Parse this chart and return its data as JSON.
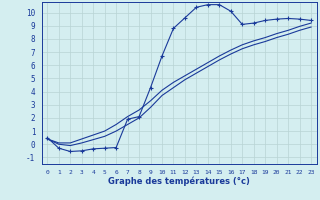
{
  "xlabel": "Graphe des températures (°c)",
  "background_color": "#d4eef0",
  "line_color": "#1a3a9a",
  "grid_color": "#b8d4d4",
  "xlim": [
    -0.5,
    23.5
  ],
  "ylim": [
    -1.5,
    10.8
  ],
  "yticks": [
    -1,
    0,
    1,
    2,
    3,
    4,
    5,
    6,
    7,
    8,
    9,
    10
  ],
  "xticks": [
    0,
    1,
    2,
    3,
    4,
    5,
    6,
    7,
    8,
    9,
    10,
    11,
    12,
    13,
    14,
    15,
    16,
    17,
    18,
    19,
    20,
    21,
    22,
    23
  ],
  "series1_x": [
    0,
    1,
    2,
    3,
    4,
    5,
    6,
    7,
    8,
    9,
    10,
    11,
    12,
    13,
    14,
    15,
    16,
    17,
    18,
    19,
    20,
    21,
    22,
    23
  ],
  "series1_y": [
    0.5,
    -0.3,
    -0.55,
    -0.5,
    -0.35,
    -0.3,
    -0.25,
    1.9,
    2.1,
    4.3,
    6.7,
    8.8,
    9.6,
    10.4,
    10.6,
    10.6,
    10.1,
    9.1,
    9.2,
    9.4,
    9.5,
    9.55,
    9.5,
    9.4
  ],
  "series2_x": [
    0,
    1,
    2,
    3,
    4,
    5,
    6,
    7,
    8,
    9,
    10,
    11,
    12,
    13,
    14,
    15,
    16,
    17,
    18,
    19,
    20,
    21,
    22,
    23
  ],
  "series2_y": [
    0.4,
    0.1,
    0.1,
    0.4,
    0.7,
    1.0,
    1.5,
    2.1,
    2.6,
    3.3,
    4.1,
    4.7,
    5.2,
    5.7,
    6.2,
    6.7,
    7.15,
    7.55,
    7.85,
    8.1,
    8.4,
    8.65,
    8.95,
    9.2
  ],
  "series3_x": [
    0,
    1,
    2,
    3,
    4,
    5,
    6,
    7,
    8,
    9,
    10,
    11,
    12,
    13,
    14,
    15,
    16,
    17,
    18,
    19,
    20,
    21,
    22,
    23
  ],
  "series3_y": [
    0.4,
    0.0,
    -0.1,
    0.1,
    0.35,
    0.6,
    1.0,
    1.5,
    2.0,
    2.8,
    3.7,
    4.3,
    4.9,
    5.4,
    5.9,
    6.4,
    6.85,
    7.25,
    7.55,
    7.8,
    8.1,
    8.35,
    8.65,
    8.9
  ]
}
